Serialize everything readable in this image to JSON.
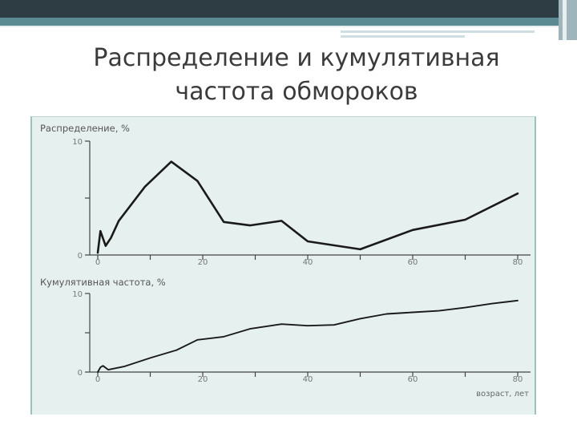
{
  "slide": {
    "title": "Распределение и кумулятивная\nчастота обмороков",
    "colors": {
      "dark_band": "#2e3d43",
      "teal_band": "#5c8a93",
      "chart_bg": "#e6f1ef"
    }
  },
  "chart_data": [
    {
      "type": "line",
      "title": "Распределение, %",
      "xlim": [
        0,
        80
      ],
      "ylim": [
        0,
        10
      ],
      "yticks": [
        0,
        5,
        10
      ],
      "ytick_labels": [
        "0",
        "",
        "10"
      ],
      "xticks": [
        0,
        10,
        20,
        30,
        40,
        50,
        60,
        70,
        80
      ],
      "xtick_labels": [
        "0",
        "",
        "20",
        "",
        "40",
        "",
        "60",
        "",
        "80"
      ],
      "series": [
        {
          "x": [
            0,
            0.5,
            1.5,
            2.5,
            4,
            9,
            14,
            19,
            24,
            29,
            35,
            40,
            50,
            60,
            70,
            80
          ],
          "y": [
            0.2,
            2.1,
            0.8,
            1.5,
            3.0,
            6.0,
            8.2,
            6.5,
            2.9,
            2.6,
            3.0,
            1.2,
            0.5,
            2.2,
            3.1,
            5.4
          ]
        }
      ]
    },
    {
      "type": "line",
      "title": "Кумулятивная частота, %",
      "xlabel": "возраст, лет",
      "xlim": [
        0,
        80
      ],
      "ylim": [
        0,
        10
      ],
      "yticks": [
        0,
        5,
        10
      ],
      "ytick_labels": [
        "0",
        "",
        "10"
      ],
      "xticks": [
        0,
        10,
        20,
        30,
        40,
        50,
        60,
        70,
        80
      ],
      "xtick_labels": [
        "0",
        "",
        "20",
        "",
        "40",
        "",
        "60",
        "",
        "80"
      ],
      "series": [
        {
          "x": [
            0,
            0.5,
            1,
            2,
            5,
            10,
            15,
            19,
            24,
            29,
            35,
            40,
            45,
            50,
            55,
            60,
            65,
            70,
            75,
            80
          ],
          "y": [
            0,
            0.6,
            0.8,
            0.3,
            0.7,
            1.8,
            2.8,
            4.1,
            4.5,
            5.5,
            6.1,
            5.9,
            6.0,
            6.8,
            7.4,
            7.6,
            7.8,
            8.2,
            8.7,
            9.1
          ]
        }
      ]
    }
  ]
}
